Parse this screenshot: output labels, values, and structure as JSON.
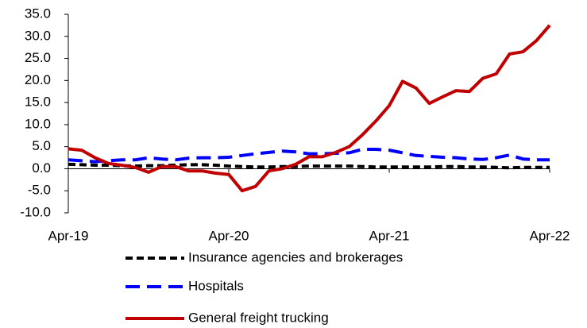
{
  "chart_data": {
    "type": "line",
    "categories": [
      "Apr-19",
      null,
      null,
      null,
      null,
      null,
      null,
      null,
      null,
      null,
      null,
      null,
      "Apr-20",
      null,
      null,
      null,
      null,
      null,
      null,
      null,
      null,
      null,
      null,
      null,
      "Apr-21",
      null,
      null,
      null,
      null,
      null,
      null,
      null,
      null,
      null,
      null,
      null,
      "Apr-22"
    ],
    "series": [
      {
        "name": "Insurance agencies and brokerages",
        "color": "#000000",
        "values": [
          1.0,
          0.9,
          0.8,
          0.8,
          0.7,
          0.6,
          0.7,
          0.7,
          0.8,
          0.9,
          0.9,
          0.8,
          0.6,
          0.5,
          0.4,
          0.4,
          0.5,
          0.5,
          0.6,
          0.6,
          0.6,
          0.6,
          0.5,
          0.4,
          0.4,
          0.4,
          0.4,
          0.4,
          0.5,
          0.5,
          0.4,
          0.4,
          0.3,
          0.2,
          0.3,
          0.3,
          0.3
        ]
      },
      {
        "name": "Hospitals",
        "color": "#0000ff",
        "values": [
          2.0,
          1.8,
          1.6,
          1.8,
          2.0,
          2.0,
          2.5,
          2.2,
          2.0,
          2.4,
          2.5,
          2.5,
          2.6,
          3.0,
          3.4,
          3.7,
          4.0,
          3.8,
          3.4,
          3.4,
          3.5,
          3.6,
          4.4,
          4.4,
          4.2,
          3.6,
          3.0,
          2.8,
          2.6,
          2.5,
          2.2,
          2.1,
          2.5,
          3.1,
          2.2,
          2.0,
          2.0
        ]
      },
      {
        "name": "General freight trucking",
        "color": "#c00000",
        "values": [
          4.5,
          4.2,
          2.5,
          1.2,
          0.8,
          0.3,
          -0.8,
          0.5,
          0.5,
          -0.5,
          -0.5,
          -1.0,
          -1.3,
          -5.0,
          -4.0,
          -0.5,
          0.0,
          1.0,
          2.7,
          2.7,
          3.7,
          5.0,
          7.7,
          10.8,
          14.3,
          19.8,
          18.3,
          14.8,
          16.3,
          17.7,
          17.5,
          20.5,
          21.5,
          26.0,
          26.5,
          29.0,
          32.5
        ]
      }
    ],
    "ylim": [
      -10,
      35
    ],
    "yticks": [
      {
        "value": -10,
        "label": "-10.0"
      },
      {
        "value": -5,
        "label": "-5.0"
      },
      {
        "value": 0,
        "label": "0.0"
      },
      {
        "value": 5,
        "label": "5.0"
      },
      {
        "value": 10,
        "label": "10.0"
      },
      {
        "value": 15,
        "label": "15.0"
      },
      {
        "value": 20,
        "label": "20.0"
      },
      {
        "value": 25,
        "label": "25.0"
      },
      {
        "value": 30,
        "label": "30.0"
      },
      {
        "value": 35,
        "label": "35.0"
      }
    ],
    "grid": false
  }
}
